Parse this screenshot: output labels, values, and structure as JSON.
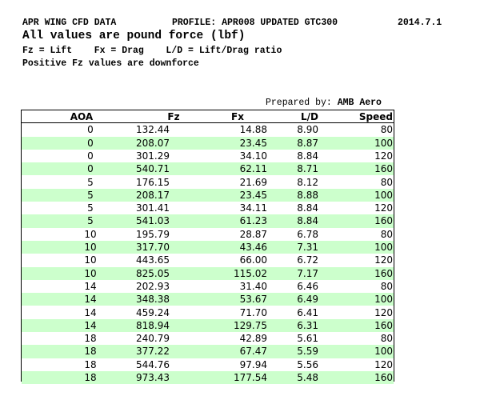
{
  "header": {
    "title": "APR WING CFD DATA",
    "profile": "PROFILE: APR008 UPDATED GTC300",
    "date": "2014.7.1",
    "units": "All values are pound force (lbf)",
    "legend": "Fz = Lift    Fx = Drag    L/D = Lift/Drag ratio",
    "sign_note": "Positive Fz values are downforce"
  },
  "prepared_by": {
    "label": "Prepared by:",
    "name": "AMB Aero"
  },
  "table": {
    "columns": [
      "AOA",
      "Fz",
      "Fx",
      "L/D",
      "Speed"
    ],
    "rows": [
      [
        "0",
        "132.44",
        "14.88",
        "8.90",
        "80"
      ],
      [
        "0",
        "208.07",
        "23.45",
        "8.87",
        "100"
      ],
      [
        "0",
        "301.29",
        "34.10",
        "8.84",
        "120"
      ],
      [
        "0",
        "540.71",
        "62.11",
        "8.71",
        "160"
      ],
      [
        "5",
        "176.15",
        "21.69",
        "8.12",
        "80"
      ],
      [
        "5",
        "208.17",
        "23.45",
        "8.88",
        "100"
      ],
      [
        "5",
        "301.41",
        "34.11",
        "8.84",
        "120"
      ],
      [
        "5",
        "541.03",
        "61.23",
        "8.84",
        "160"
      ],
      [
        "10",
        "195.79",
        "28.87",
        "6.78",
        "80"
      ],
      [
        "10",
        "317.70",
        "43.46",
        "7.31",
        "100"
      ],
      [
        "10",
        "443.65",
        "66.00",
        "6.72",
        "120"
      ],
      [
        "10",
        "825.05",
        "115.02",
        "7.17",
        "160"
      ],
      [
        "14",
        "202.93",
        "31.40",
        "6.46",
        "80"
      ],
      [
        "14",
        "348.38",
        "53.67",
        "6.49",
        "100"
      ],
      [
        "14",
        "459.24",
        "71.70",
        "6.41",
        "120"
      ],
      [
        "14",
        "818.94",
        "129.75",
        "6.31",
        "160"
      ],
      [
        "18",
        "240.79",
        "42.89",
        "5.61",
        "80"
      ],
      [
        "18",
        "377.22",
        "67.47",
        "5.59",
        "100"
      ],
      [
        "18",
        "544.76",
        "97.94",
        "5.56",
        "120"
      ],
      [
        "18",
        "973.43",
        "177.54",
        "5.48",
        "160"
      ]
    ]
  }
}
